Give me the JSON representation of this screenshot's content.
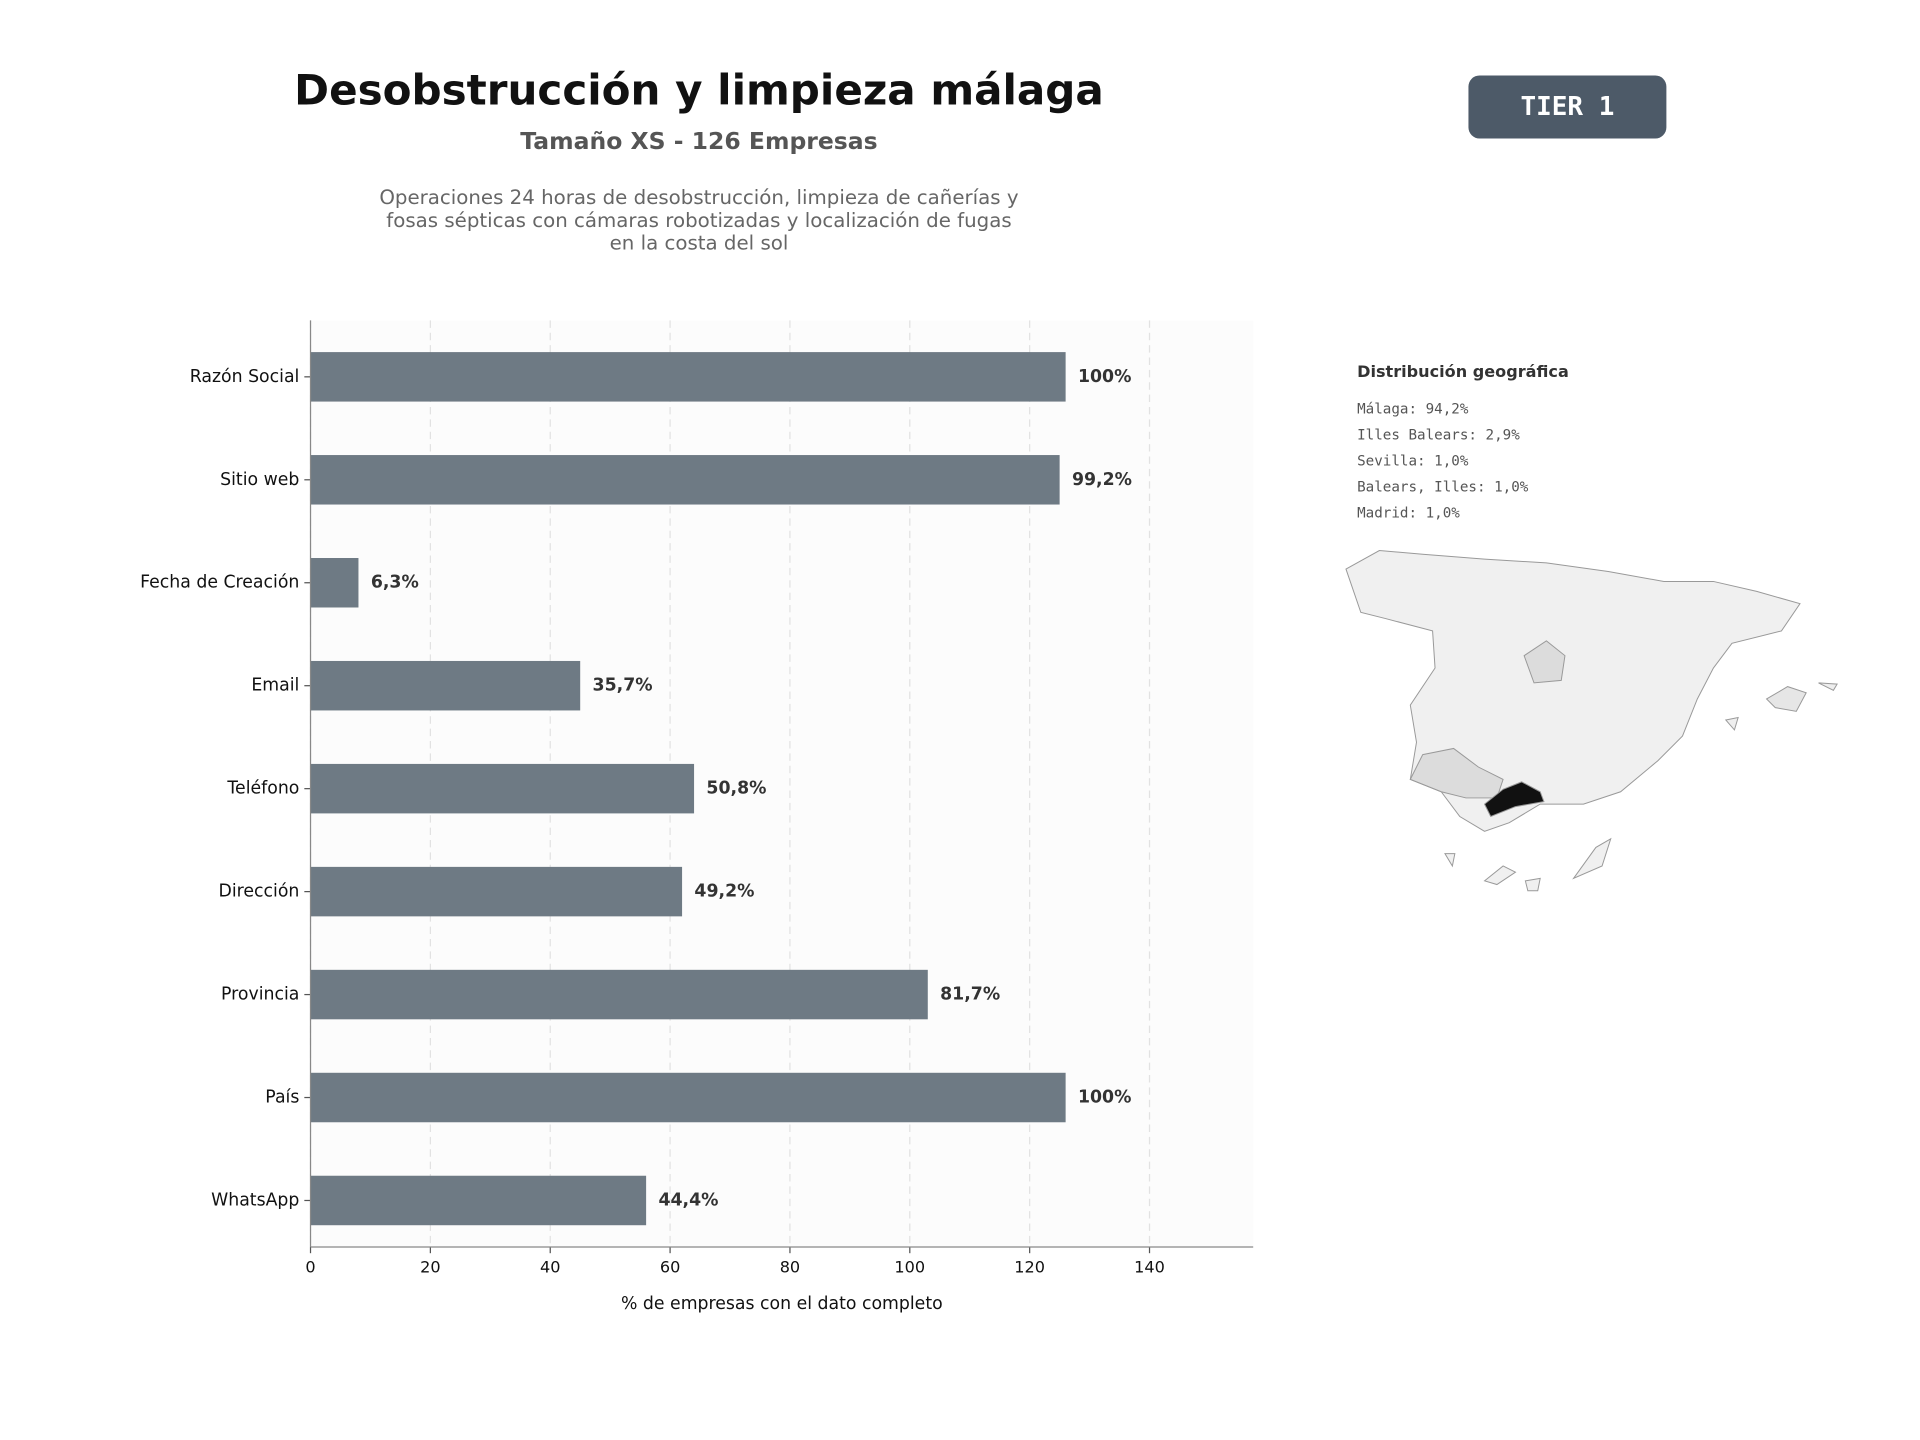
{
  "chart_data": {
    "type": "hbar",
    "title": "Desobstrucción y limpieza málaga",
    "subtitle": "Tamaño XS - 126 Empresas",
    "xlabel": "% de empresas con el dato completo",
    "categories": [
      "Razón Social",
      "Sitio web",
      "Fecha de Creación",
      "Email",
      "Teléfono",
      "Dirección",
      "Provincia",
      "País",
      "WhatsApp"
    ],
    "values": [
      126,
      125,
      8,
      45,
      64,
      62,
      103,
      126,
      56
    ],
    "value_labels": [
      "100%",
      "99,2%",
      "6,3%",
      "35,7%",
      "50,8%",
      "49,2%",
      "81,7%",
      "100%",
      "44,4%"
    ],
    "color": "#6e7a84",
    "xlim": [
      0,
      157.3
    ],
    "xticks": [
      0,
      20,
      40,
      60,
      80,
      100,
      120,
      140
    ],
    "grid": true
  },
  "description": "Operaciones 24 horas de desobstrucción, limpieza de cañerías y fosas sépticas con cámaras robotizadas y localización de fugas en la costa del sol",
  "badge": "TIER 1",
  "map": {
    "title": "Distribución geográfica",
    "items": [
      "Málaga: 94,2%",
      "Illes Balears: 2,9%",
      "Sevilla: 1,0%",
      "Balears, Illes: 1,0%",
      "Madrid: 1,0%"
    ]
  }
}
